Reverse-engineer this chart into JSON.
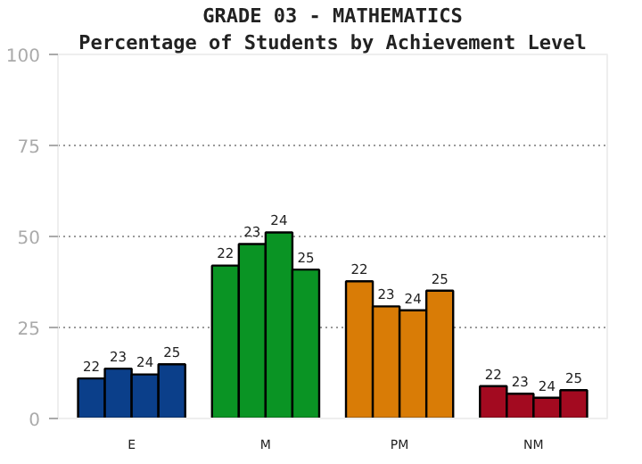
{
  "chart_data": {
    "type": "bar",
    "title": "GRADE 03 - MATHEMATICS",
    "subtitle": "Percentage of Students by Achievement Level",
    "categories": [
      "E",
      "M",
      "PM",
      "NM"
    ],
    "series": [
      {
        "name": "22",
        "colors": [
          "#0b3f8a",
          "#0a9424",
          "#d97c06",
          "#a30a20"
        ],
        "values": [
          11,
          42,
          37.7,
          8.9
        ]
      },
      {
        "name": "23",
        "colors": [
          "#0b3f8a",
          "#0a9424",
          "#d97c06",
          "#a30a20"
        ],
        "values": [
          13.7,
          47.9,
          30.8,
          6.8
        ]
      },
      {
        "name": "24",
        "colors": [
          "#0b3f8a",
          "#0a9424",
          "#d97c06",
          "#a30a20"
        ],
        "values": [
          12.1,
          51.1,
          29.7,
          5.7
        ]
      },
      {
        "name": "25",
        "colors": [
          "#0b3f8a",
          "#0a9424",
          "#d97c06",
          "#a30a20"
        ],
        "values": [
          14.9,
          40.9,
          35.1,
          7.8
        ]
      }
    ],
    "ylim": [
      0,
      100
    ],
    "yticks": [
      0,
      25,
      50,
      75,
      100
    ],
    "grid": "y"
  }
}
